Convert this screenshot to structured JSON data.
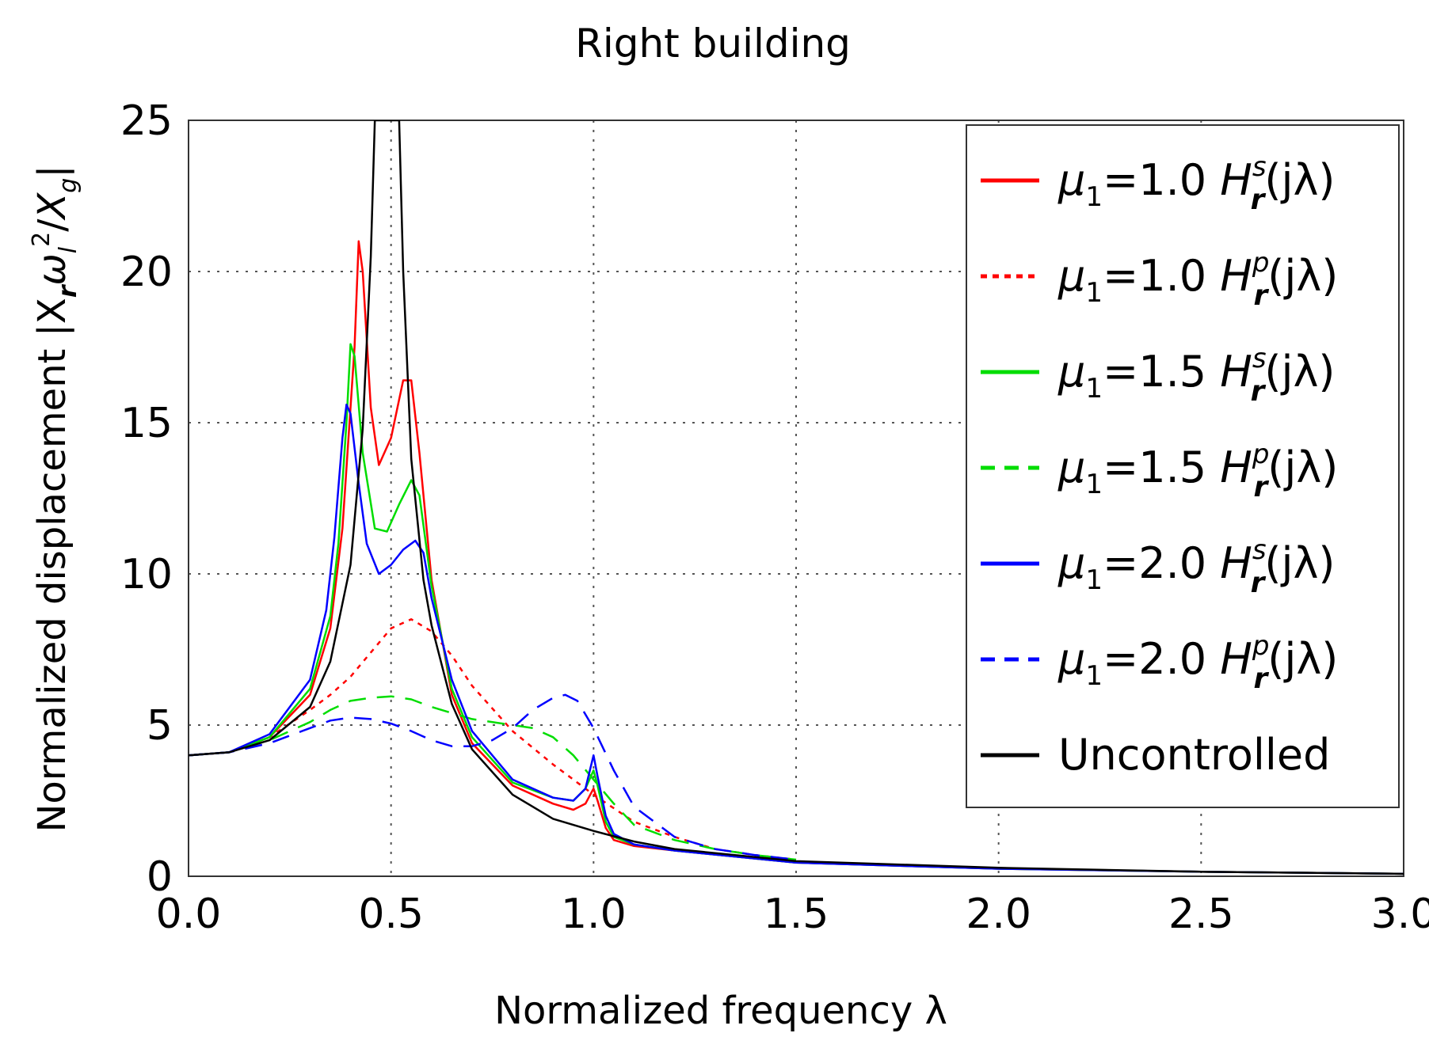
{
  "chart_data": {
    "type": "line",
    "title": "Right building",
    "xlabel": "Normalized frequency λ",
    "ylabel": "Normalized displacement |X",
    "ylabel_parts": {
      "prefix": "Normalized displacement |X",
      "sub_r": "r",
      "omega": "ω",
      "sub_l": "l",
      "sup_2": "2",
      "slash": "/",
      "xg": "X",
      "sub_g": "g",
      "bar": "|"
    },
    "xlim": [
      0.0,
      3.0
    ],
    "ylim": [
      0,
      25
    ],
    "xticks": [
      "0.0",
      "0.5",
      "1.0",
      "1.5",
      "2.0",
      "2.5",
      "3.0"
    ],
    "yticks": [
      "0",
      "5",
      "10",
      "15",
      "20",
      "25"
    ],
    "grid": true,
    "legend_position": "top-right",
    "series": [
      {
        "name": "μ1=1.0 Hrs(jλ)",
        "legend": {
          "mu": "μ",
          "sub": "1",
          "eq": "=1.0 ",
          "H": "H",
          "sup": "s",
          "hsub": "r",
          "arg": "(jλ)"
        },
        "color": "#ff0000",
        "style": "solid",
        "x": [
          0.0,
          0.1,
          0.2,
          0.3,
          0.35,
          0.38,
          0.41,
          0.42,
          0.43,
          0.45,
          0.47,
          0.5,
          0.53,
          0.55,
          0.57,
          0.6,
          0.65,
          0.7,
          0.8,
          0.9,
          0.95,
          0.98,
          1.0,
          1.01,
          1.03,
          1.05,
          1.1,
          1.2,
          1.5,
          2.0,
          2.5,
          3.0
        ],
        "y": [
          4.0,
          4.1,
          4.6,
          6.0,
          8.2,
          11.5,
          17.5,
          21.0,
          20.0,
          15.5,
          13.6,
          14.5,
          16.4,
          16.4,
          14.0,
          9.8,
          6.0,
          4.4,
          3.0,
          2.4,
          2.2,
          2.4,
          2.9,
          2.5,
          1.6,
          1.2,
          1.0,
          0.85,
          0.45,
          0.25,
          0.15,
          0.08
        ]
      },
      {
        "name": "μ1=1.0 Hrp(jλ)",
        "legend": {
          "mu": "μ",
          "sub": "1",
          "eq": "=1.0 ",
          "H": "H",
          "sup": "p",
          "hsub": "r",
          "arg": "(jλ)"
        },
        "color": "#ff0000",
        "style": "dotted",
        "x": [
          0.0,
          0.1,
          0.2,
          0.3,
          0.35,
          0.4,
          0.45,
          0.5,
          0.55,
          0.6,
          0.65,
          0.7,
          0.8,
          0.9,
          1.0,
          1.1,
          1.2,
          1.3,
          1.4,
          1.5
        ],
        "y": [
          4.0,
          4.1,
          4.6,
          5.5,
          6.0,
          6.6,
          7.4,
          8.2,
          8.5,
          8.1,
          7.3,
          6.3,
          4.8,
          3.7,
          2.7,
          1.8,
          1.3,
          0.9,
          0.7,
          0.55
        ]
      },
      {
        "name": "μ1=1.5 Hrs(jλ)",
        "legend": {
          "mu": "μ",
          "sub": "1",
          "eq": "=1.5 ",
          "H": "H",
          "sup": "s",
          "hsub": "r",
          "arg": "(jλ)"
        },
        "color": "#00dd00",
        "style": "solid",
        "x": [
          0.0,
          0.1,
          0.2,
          0.3,
          0.35,
          0.37,
          0.39,
          0.4,
          0.41,
          0.43,
          0.46,
          0.49,
          0.52,
          0.55,
          0.57,
          0.6,
          0.65,
          0.7,
          0.8,
          0.9,
          0.95,
          0.98,
          1.0,
          1.01,
          1.03,
          1.05,
          1.1,
          1.2,
          1.5,
          2.0,
          2.5,
          3.0
        ],
        "y": [
          4.0,
          4.1,
          4.6,
          6.2,
          8.6,
          11.0,
          15.0,
          17.6,
          17.2,
          14.0,
          11.5,
          11.4,
          12.3,
          13.1,
          12.6,
          9.6,
          6.2,
          4.6,
          3.1,
          2.6,
          2.5,
          2.9,
          3.5,
          3.0,
          1.8,
          1.3,
          1.05,
          0.85,
          0.45,
          0.25,
          0.15,
          0.08
        ]
      },
      {
        "name": "μ1=1.5 Hrp(jλ)",
        "legend": {
          "mu": "μ",
          "sub": "1",
          "eq": "=1.5 ",
          "H": "H",
          "sup": "p",
          "hsub": "r",
          "arg": "(jλ)"
        },
        "color": "#00dd00",
        "style": "dashed",
        "x": [
          0.0,
          0.1,
          0.2,
          0.3,
          0.35,
          0.4,
          0.45,
          0.5,
          0.55,
          0.6,
          0.7,
          0.8,
          0.85,
          0.9,
          0.95,
          1.0,
          1.05,
          1.1,
          1.2,
          1.3,
          1.4,
          1.5
        ],
        "y": [
          4.0,
          4.1,
          4.5,
          5.1,
          5.5,
          5.8,
          5.9,
          5.95,
          5.85,
          5.6,
          5.2,
          5.0,
          4.9,
          4.6,
          4.0,
          3.2,
          2.4,
          1.7,
          1.2,
          0.9,
          0.7,
          0.55
        ]
      },
      {
        "name": "μ1=2.0 Hrs(jλ)",
        "legend": {
          "mu": "μ",
          "sub": "1",
          "eq": "=2.0 ",
          "H": "H",
          "sup": "s",
          "hsub": "r",
          "arg": "(jλ)"
        },
        "color": "#0000ff",
        "style": "solid",
        "x": [
          0.0,
          0.1,
          0.2,
          0.3,
          0.34,
          0.36,
          0.38,
          0.39,
          0.4,
          0.42,
          0.44,
          0.47,
          0.5,
          0.53,
          0.56,
          0.58,
          0.6,
          0.65,
          0.7,
          0.8,
          0.9,
          0.95,
          0.98,
          1.0,
          1.01,
          1.03,
          1.05,
          1.1,
          1.2,
          1.5,
          2.0,
          2.5,
          3.0
        ],
        "y": [
          4.0,
          4.1,
          4.7,
          6.5,
          8.8,
          11.2,
          14.5,
          15.6,
          15.3,
          13.0,
          11.0,
          10.0,
          10.3,
          10.8,
          11.1,
          10.7,
          9.2,
          6.5,
          4.8,
          3.2,
          2.6,
          2.5,
          2.9,
          4.0,
          3.3,
          2.0,
          1.4,
          1.05,
          0.85,
          0.45,
          0.25,
          0.15,
          0.08
        ]
      },
      {
        "name": "μ1=2.0 Hrp(jλ)",
        "legend": {
          "mu": "μ",
          "sub": "1",
          "eq": "=2.0 ",
          "H": "H",
          "sup": "p",
          "hsub": "r",
          "arg": "(jλ)"
        },
        "color": "#0000ff",
        "style": "dashed",
        "x": [
          0.0,
          0.1,
          0.2,
          0.3,
          0.35,
          0.4,
          0.45,
          0.5,
          0.55,
          0.6,
          0.65,
          0.7,
          0.75,
          0.8,
          0.85,
          0.9,
          0.93,
          0.96,
          1.0,
          1.05,
          1.1,
          1.2,
          1.3,
          1.4,
          1.5
        ],
        "y": [
          4.0,
          4.1,
          4.4,
          4.9,
          5.15,
          5.25,
          5.2,
          5.05,
          4.8,
          4.5,
          4.3,
          4.3,
          4.5,
          4.9,
          5.5,
          5.9,
          6.0,
          5.8,
          4.9,
          3.5,
          2.3,
          1.3,
          0.9,
          0.7,
          0.55
        ]
      },
      {
        "name": "Uncontrolled",
        "legend": {
          "plain": "Uncontrolled"
        },
        "color": "#000000",
        "style": "solid",
        "x": [
          0.0,
          0.1,
          0.2,
          0.3,
          0.35,
          0.4,
          0.43,
          0.45,
          0.46,
          0.47,
          0.48,
          0.5,
          0.51,
          0.52,
          0.53,
          0.55,
          0.58,
          0.6,
          0.65,
          0.7,
          0.8,
          0.9,
          1.0,
          1.1,
          1.2,
          1.5,
          2.0,
          2.5,
          3.0
        ],
        "y": [
          4.0,
          4.1,
          4.5,
          5.6,
          7.1,
          10.3,
          14.8,
          20.5,
          25.0,
          25.0,
          25.0,
          25.0,
          25.0,
          25.0,
          20.0,
          13.8,
          9.8,
          8.3,
          5.7,
          4.2,
          2.7,
          1.9,
          1.5,
          1.15,
          0.9,
          0.5,
          0.28,
          0.15,
          0.08
        ]
      }
    ]
  }
}
